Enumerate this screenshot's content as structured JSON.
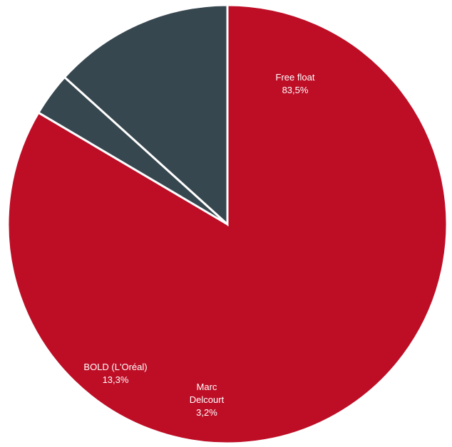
{
  "chart_data": {
    "type": "pie",
    "slices": [
      {
        "name": "Free float",
        "value": 83.5,
        "value_label": "83,5%",
        "label_lines": [
          "Free float",
          "83,5%"
        ],
        "color": "#BD0E26"
      },
      {
        "name": "Marc Delcourt",
        "value": 3.2,
        "value_label": "3,2%",
        "label_lines": [
          "Marc",
          "Delcourt",
          "3,2%"
        ],
        "color": "#37474F"
      },
      {
        "name": "BOLD (L'Oréal)",
        "value": 13.3,
        "value_label": "13,3%",
        "label_lines": [
          "BOLD (L'Oréal)",
          "13,3%"
        ],
        "color": "#37474F"
      }
    ],
    "start_angle": "12 o'clock",
    "direction": "clockwise",
    "legend": "none",
    "slice_border_color": "#FFFFFF",
    "label_color": "#FFFFFF"
  }
}
